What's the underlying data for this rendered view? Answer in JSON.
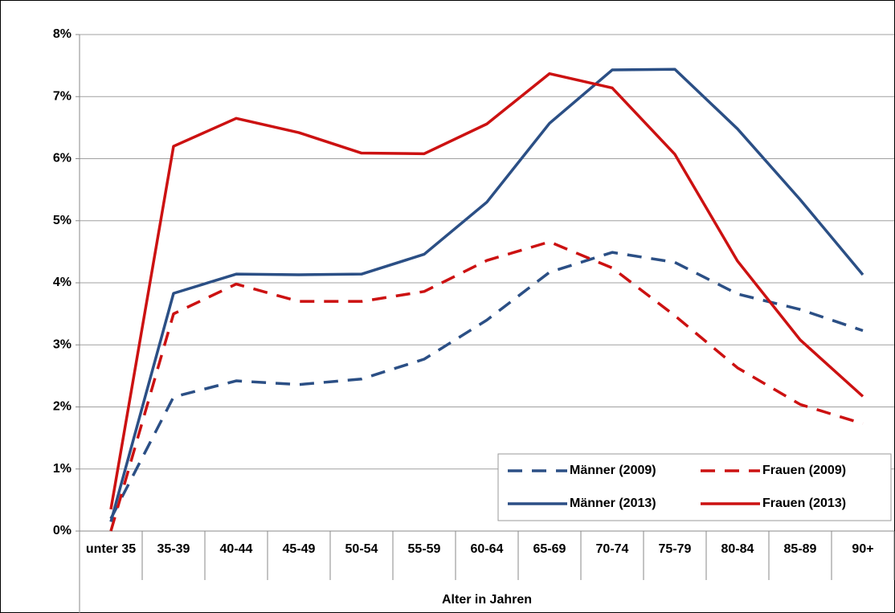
{
  "chart_data": {
    "type": "line",
    "x_label": "Alter in Jahren",
    "categories": [
      "unter 35",
      "35-39",
      "40-44",
      "45-49",
      "50-54",
      "55-59",
      "60-64",
      "65-69",
      "70-74",
      "75-79",
      "80-84",
      "85-89",
      "90+"
    ],
    "series": [
      {
        "name": "Männer (2009)",
        "color": "#2b4f85",
        "dash": true,
        "values": [
          0.2,
          2.16,
          2.42,
          2.36,
          2.45,
          2.77,
          3.4,
          4.17,
          4.49,
          4.33,
          3.82,
          3.57,
          3.23
        ]
      },
      {
        "name": "Frauen (2009)",
        "color": "#cc1111",
        "dash": true,
        "values": [
          0,
          3.5,
          3.98,
          3.7,
          3.7,
          3.86,
          4.36,
          4.66,
          4.24,
          3.47,
          2.63,
          2.04,
          1.73
        ]
      },
      {
        "name": "Männer (2013)",
        "color": "#2b4f85",
        "dash": false,
        "values": [
          0.15,
          3.83,
          4.14,
          4.13,
          4.14,
          4.46,
          5.3,
          6.57,
          7.43,
          7.44,
          6.48,
          5.34,
          4.13
        ]
      },
      {
        "name": "Frauen (2013)",
        "color": "#cc1111",
        "dash": false,
        "values": [
          0.35,
          6.2,
          6.65,
          6.42,
          6.09,
          6.08,
          6.56,
          7.37,
          7.14,
          6.07,
          4.35,
          3.08,
          2.17
        ]
      }
    ],
    "ylim": [
      0,
      8
    ],
    "yticks": [
      {
        "value": 0,
        "label": "0%"
      },
      {
        "value": 1,
        "label": "1%"
      },
      {
        "value": 2,
        "label": "2%"
      },
      {
        "value": 3,
        "label": "3%"
      },
      {
        "value": 4,
        "label": "4%"
      },
      {
        "value": 5,
        "label": "5%"
      },
      {
        "value": 6,
        "label": "6%"
      },
      {
        "value": 7,
        "label": "7%"
      },
      {
        "value": 8,
        "label": "8%"
      }
    ],
    "grid": true,
    "legend": "lower right"
  }
}
